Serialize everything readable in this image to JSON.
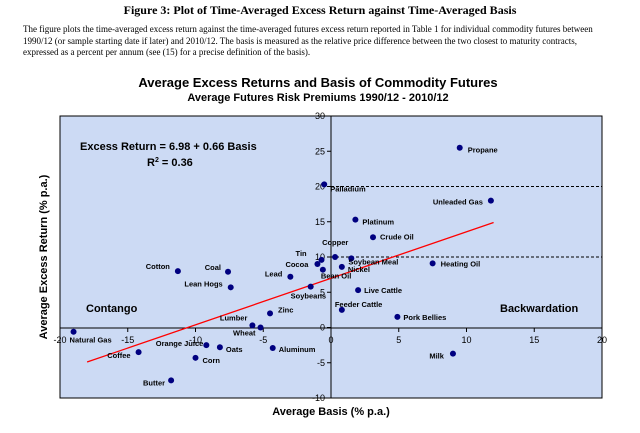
{
  "figure": {
    "title": "Figure 3: Plot of Time-Averaged Excess Return against Time-Averaged Basis",
    "caption_lines": [
      "The figure plots the time-averaged excess return against the time-averaged futures excess return reported in Table 1 for individual commodity futures between",
      "1990/12 (or sample starting date if later) and 2010/12.  The basis is measured as the relative price difference between the two closest to maturity contracts,",
      "expressed as a percent per annum (see (15) for a precise definition of the basis)."
    ]
  },
  "chart_data": {
    "type": "scatter",
    "title": "Average Excess Returns and Basis of Commodity Futures",
    "subtitle": "Average Futures Risk Premiums 1990/12 - 2010/12",
    "xlabel": "Average Basis (% p.a.)",
    "ylabel": "Average Excess Return (% p.a.)",
    "xlim": [
      -20,
      20
    ],
    "ylim": [
      -10,
      30
    ],
    "xticks": [
      "-20",
      "-15",
      "-10",
      "-5",
      "0",
      "5",
      "10",
      "15",
      "20"
    ],
    "yticks": [
      "-10",
      "-5",
      "0",
      "5",
      "10",
      "15",
      "20",
      "25",
      "30"
    ],
    "reference_lines_y": [
      10,
      20
    ],
    "grid": false,
    "colors": {
      "plot_bg": "#ccdaf4",
      "points": "#000080",
      "fit_line": "#ff0000"
    },
    "fit_line": {
      "intercept": 6.98,
      "slope": 0.66
    },
    "annotations": {
      "equation": "Excess Return = 6.98 + 0.66 Basis",
      "r_squared": "R",
      "r_squared_sup": "2",
      "r_squared_value": " = 0.36"
    },
    "regions": {
      "left": "Contango",
      "right": "Backwardation"
    },
    "points": [
      {
        "label": "Propane",
        "x": 9.5,
        "y": 25.5
      },
      {
        "label": "Palladium",
        "x": -0.5,
        "y": 20.3
      },
      {
        "label": "Unleaded Gas",
        "x": 11.8,
        "y": 18.0
      },
      {
        "label": "Platinum",
        "x": 1.8,
        "y": 15.3
      },
      {
        "label": "Crude Oil",
        "x": 3.1,
        "y": 12.8
      },
      {
        "label": "Copper",
        "x": 0.3,
        "y": 10.0
      },
      {
        "label": "Tin",
        "x": -0.7,
        "y": 9.6
      },
      {
        "label": "Soybean Meal",
        "x": 1.5,
        "y": 9.8
      },
      {
        "label": "Cocoa",
        "x": -1.0,
        "y": 9.0
      },
      {
        "label": "Heating Oil",
        "x": 7.5,
        "y": 9.1
      },
      {
        "label": "Nickel",
        "x": 0.8,
        "y": 8.6
      },
      {
        "label": "Bean Oil",
        "x": -0.6,
        "y": 8.2
      },
      {
        "label": "Cotton",
        "x": -11.3,
        "y": 8.0
      },
      {
        "label": "Coal",
        "x": -7.6,
        "y": 7.9
      },
      {
        "label": "Lead",
        "x": -3.0,
        "y": 7.2
      },
      {
        "label": "Lean Hogs",
        "x": -7.4,
        "y": 5.7
      },
      {
        "label": "Soybeans",
        "x": -1.5,
        "y": 5.8
      },
      {
        "label": "Live Cattle",
        "x": 2.0,
        "y": 5.3
      },
      {
        "label": "Feeder Cattle",
        "x": 0.8,
        "y": 2.5
      },
      {
        "label": "Zinc",
        "x": -4.5,
        "y": 2.0
      },
      {
        "label": "Pork Bellies",
        "x": 4.9,
        "y": 1.5
      },
      {
        "label": "Lumber",
        "x": -5.8,
        "y": 0.3
      },
      {
        "label": "Wheat",
        "x": -5.2,
        "y": 0.0
      },
      {
        "label": "Natural Gas",
        "x": -19.0,
        "y": -0.6
      },
      {
        "label": "Orange Juice",
        "x": -9.2,
        "y": -2.5
      },
      {
        "label": "Oats",
        "x": -8.2,
        "y": -2.8
      },
      {
        "label": "Aluminum",
        "x": -4.3,
        "y": -2.9
      },
      {
        "label": "Coffee",
        "x": -14.2,
        "y": -3.5
      },
      {
        "label": "Milk",
        "x": 9.0,
        "y": -3.7
      },
      {
        "label": "Corn",
        "x": -10.0,
        "y": -4.3
      },
      {
        "label": "Butter",
        "x": -11.8,
        "y": -7.5
      }
    ]
  }
}
